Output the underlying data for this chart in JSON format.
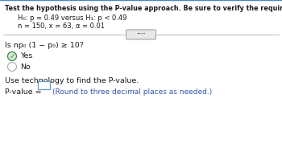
{
  "title_line": "Test the hypothesis using the P-value approach. Be sure to verify the requirements of the test.",
  "h0_text": "H₀: p = 0.49 versus H₁: p < 0.49",
  "params_text": "n = 150, x = 63, α = 0.01",
  "question_text": "Is np₀ (1 − p₀) ≥ 10?",
  "yes_label": "Yes",
  "no_label": "No",
  "use_tech_text": "Use technology to find the P-value.",
  "pvalue_label": "P-value = ",
  "pvalue_hint": "(Round to three decimal places as needed.)",
  "top_bar_color": "#4a86c8",
  "background_color": "#f0eeeb",
  "divider_color": "#b0b0b0",
  "checked_color": "#3a8a3a",
  "radio_checked_bg": "#d8e8d8",
  "hint_color": "#3355aa",
  "box_border_color": "#6699cc",
  "dots_box_color": "#e8e8e8",
  "text_color": "#1a1a1a",
  "white": "#ffffff"
}
